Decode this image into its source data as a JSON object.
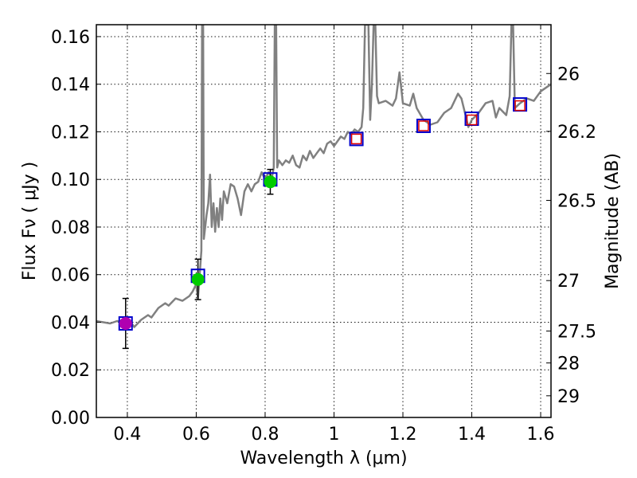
{
  "chart_data": {
    "type": "line",
    "title": "",
    "xlabel": "Wavelength  λ (μm)",
    "ylabel": "Flux  Fν  ( μJy )",
    "ylabel_right": "Magnitude (AB)",
    "xlim": [
      0.31,
      1.63
    ],
    "ylim": [
      0.0,
      0.165
    ],
    "xticks": [
      0.4,
      0.6,
      0.8,
      1.0,
      1.2,
      1.4,
      1.6
    ],
    "xtick_labels": [
      "0.4",
      "0.6",
      "0.8",
      "1",
      "1.2",
      "1.4",
      "1.6"
    ],
    "yticks": [
      0.0,
      0.02,
      0.04,
      0.06,
      0.08,
      0.1,
      0.12,
      0.14,
      0.16
    ],
    "ytick_labels": [
      "0.00",
      "0.02",
      "0.04",
      "0.06",
      "0.08",
      "0.10",
      "0.12",
      "0.14",
      "0.16"
    ],
    "right_ticks": [
      {
        "label": "26",
        "flux": 0.1445
      },
      {
        "label": "26.2",
        "flux": 0.1202
      },
      {
        "label": "26.5",
        "flux": 0.0912
      },
      {
        "label": "27",
        "flux": 0.0575
      },
      {
        "label": "27.5",
        "flux": 0.0363
      },
      {
        "label": "28",
        "flux": 0.0229
      },
      {
        "label": "29",
        "flux": 0.0091
      }
    ],
    "grid": true,
    "series": [
      {
        "name": "model spectrum",
        "color": "#808080",
        "points": [
          [
            0.31,
            0.0405
          ],
          [
            0.33,
            0.04
          ],
          [
            0.35,
            0.0395
          ],
          [
            0.37,
            0.0405
          ],
          [
            0.39,
            0.04
          ],
          [
            0.41,
            0.04
          ],
          [
            0.42,
            0.038
          ],
          [
            0.44,
            0.041
          ],
          [
            0.46,
            0.043
          ],
          [
            0.47,
            0.042
          ],
          [
            0.49,
            0.046
          ],
          [
            0.51,
            0.048
          ],
          [
            0.52,
            0.047
          ],
          [
            0.54,
            0.05
          ],
          [
            0.56,
            0.049
          ],
          [
            0.58,
            0.051
          ],
          [
            0.59,
            0.053
          ],
          [
            0.6,
            0.056
          ],
          [
            0.605,
            0.05
          ],
          [
            0.61,
            0.06
          ],
          [
            0.615,
            0.07
          ],
          [
            0.617,
            0.165
          ],
          [
            0.62,
            0.165
          ],
          [
            0.622,
            0.075
          ],
          [
            0.63,
            0.085
          ],
          [
            0.635,
            0.09
          ],
          [
            0.64,
            0.102
          ],
          [
            0.645,
            0.08
          ],
          [
            0.65,
            0.09
          ],
          [
            0.655,
            0.078
          ],
          [
            0.66,
            0.088
          ],
          [
            0.665,
            0.08
          ],
          [
            0.67,
            0.092
          ],
          [
            0.675,
            0.083
          ],
          [
            0.68,
            0.095
          ],
          [
            0.69,
            0.09
          ],
          [
            0.7,
            0.098
          ],
          [
            0.71,
            0.097
          ],
          [
            0.72,
            0.092
          ],
          [
            0.73,
            0.085
          ],
          [
            0.74,
            0.095
          ],
          [
            0.75,
            0.098
          ],
          [
            0.76,
            0.095
          ],
          [
            0.77,
            0.098
          ],
          [
            0.78,
            0.099
          ],
          [
            0.79,
            0.103
          ],
          [
            0.8,
            0.1
          ],
          [
            0.81,
            0.103
          ],
          [
            0.82,
            0.101
          ],
          [
            0.825,
            0.105
          ],
          [
            0.828,
            0.165
          ],
          [
            0.832,
            0.165
          ],
          [
            0.835,
            0.105
          ],
          [
            0.84,
            0.108
          ],
          [
            0.85,
            0.106
          ],
          [
            0.86,
            0.108
          ],
          [
            0.87,
            0.107
          ],
          [
            0.88,
            0.11
          ],
          [
            0.89,
            0.106
          ],
          [
            0.9,
            0.105
          ],
          [
            0.91,
            0.11
          ],
          [
            0.92,
            0.108
          ],
          [
            0.93,
            0.112
          ],
          [
            0.94,
            0.109
          ],
          [
            0.95,
            0.111
          ],
          [
            0.96,
            0.113
          ],
          [
            0.97,
            0.111
          ],
          [
            0.98,
            0.115
          ],
          [
            0.99,
            0.116
          ],
          [
            1.0,
            0.114
          ],
          [
            1.01,
            0.116
          ],
          [
            1.02,
            0.118
          ],
          [
            1.03,
            0.117
          ],
          [
            1.04,
            0.12
          ],
          [
            1.05,
            0.119
          ],
          [
            1.06,
            0.121
          ],
          [
            1.07,
            0.12
          ],
          [
            1.08,
            0.122
          ],
          [
            1.085,
            0.13
          ],
          [
            1.09,
            0.165
          ],
          [
            1.1,
            0.165
          ],
          [
            1.105,
            0.125
          ],
          [
            1.11,
            0.14
          ],
          [
            1.115,
            0.165
          ],
          [
            1.12,
            0.165
          ],
          [
            1.125,
            0.135
          ],
          [
            1.13,
            0.132
          ],
          [
            1.15,
            0.133
          ],
          [
            1.17,
            0.131
          ],
          [
            1.18,
            0.134
          ],
          [
            1.19,
            0.145
          ],
          [
            1.2,
            0.132
          ],
          [
            1.22,
            0.131
          ],
          [
            1.23,
            0.136
          ],
          [
            1.24,
            0.13
          ],
          [
            1.26,
            0.125
          ],
          [
            1.28,
            0.123
          ],
          [
            1.3,
            0.124
          ],
          [
            1.32,
            0.128
          ],
          [
            1.34,
            0.13
          ],
          [
            1.36,
            0.136
          ],
          [
            1.37,
            0.134
          ],
          [
            1.38,
            0.128
          ],
          [
            1.39,
            0.122
          ],
          [
            1.4,
            0.125
          ],
          [
            1.42,
            0.128
          ],
          [
            1.44,
            0.132
          ],
          [
            1.46,
            0.133
          ],
          [
            1.47,
            0.126
          ],
          [
            1.48,
            0.13
          ],
          [
            1.5,
            0.127
          ],
          [
            1.51,
            0.135
          ],
          [
            1.515,
            0.165
          ],
          [
            1.52,
            0.165
          ],
          [
            1.525,
            0.13
          ],
          [
            1.54,
            0.132
          ],
          [
            1.56,
            0.134
          ],
          [
            1.58,
            0.133
          ],
          [
            1.6,
            0.137
          ],
          [
            1.63,
            0.14
          ]
        ]
      }
    ],
    "observed_points": [
      {
        "x": 0.395,
        "y": 0.0395,
        "yerr": 0.0105,
        "color": "#b000b0"
      },
      {
        "x": 0.605,
        "y": 0.058,
        "yerr": 0.0085,
        "color": "#00cc00"
      },
      {
        "x": 0.815,
        "y": 0.099,
        "yerr": 0.0052,
        "color": "#00cc00"
      }
    ],
    "model_photometry": [
      {
        "x": 0.395,
        "y": 0.0395
      },
      {
        "x": 0.605,
        "y": 0.0595
      },
      {
        "x": 0.815,
        "y": 0.1
      },
      {
        "x": 1.065,
        "y": 0.117
      },
      {
        "x": 1.26,
        "y": 0.1225
      },
      {
        "x": 1.4,
        "y": 0.1255
      },
      {
        "x": 1.54,
        "y": 0.1315
      }
    ],
    "upper_limits": [
      {
        "x": 1.065,
        "y": 0.117
      },
      {
        "x": 1.26,
        "y": 0.1225
      },
      {
        "x": 1.4,
        "y": 0.125
      },
      {
        "x": 1.54,
        "y": 0.131
      }
    ],
    "colors": {
      "model_box": "#0000cc",
      "upper_limit_box": "#dd0000",
      "error_bar": "#000000"
    }
  }
}
